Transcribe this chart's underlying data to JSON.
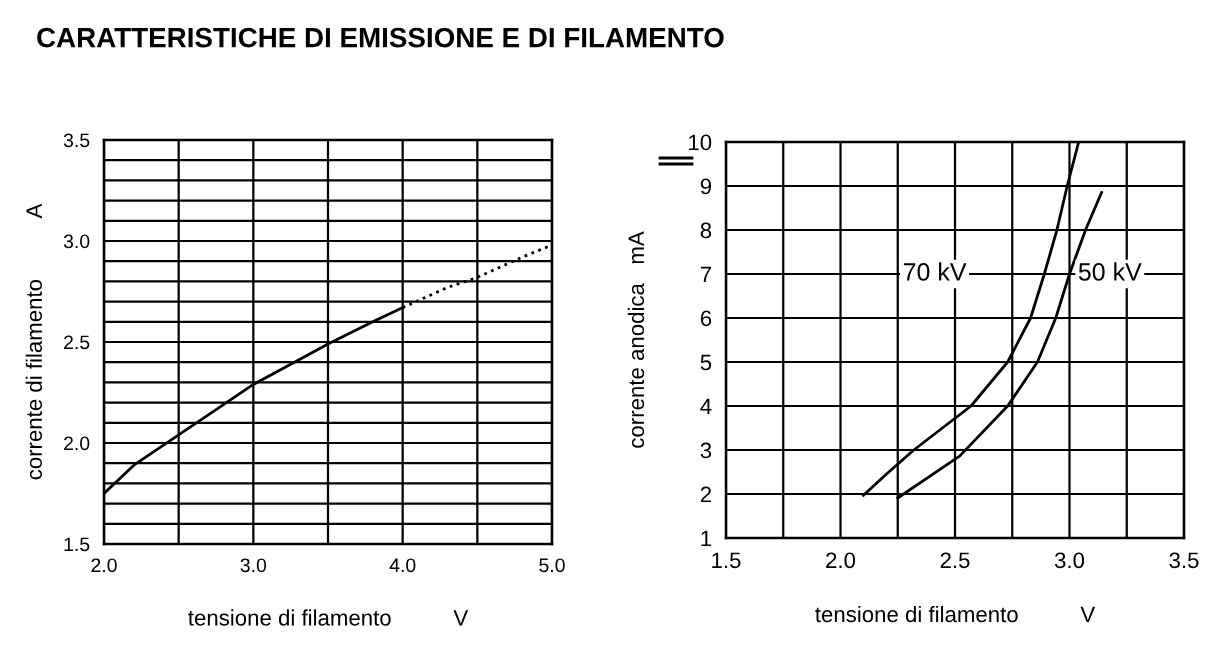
{
  "chart_data": [
    {
      "type": "line",
      "title": "CARATTERISTICHE DI EMISSIONE E DI FILAMENTO",
      "xlabel": "tensione di filamento          V",
      "ylabel": "corrente di filamento          A",
      "series": [
        {
          "color": "#000000",
          "line_style": "solid",
          "x": [
            2.0,
            2.2,
            2.5,
            2.8,
            3.0,
            3.3,
            3.5,
            3.8,
            4.0
          ],
          "values": [
            1.75,
            1.89,
            2.04,
            2.19,
            2.29,
            2.41,
            2.49,
            2.6,
            2.67
          ]
        },
        {
          "color": "#000000",
          "line_style": "dotted",
          "x": [
            4.0,
            4.3,
            4.5,
            4.8,
            5.0
          ],
          "values": [
            2.67,
            2.77,
            2.82,
            2.92,
            2.98
          ]
        }
      ],
      "xlim": [
        2.0,
        5.0
      ],
      "ylim": [
        1.5,
        3.5
      ],
      "xticks": [
        {
          "value": 2.0,
          "label": "2.0"
        },
        {
          "value": 2.5,
          "label": null
        },
        {
          "value": 3.0,
          "label": "3.0"
        },
        {
          "value": 3.5,
          "label": null
        },
        {
          "value": 4.0,
          "label": "4.0"
        },
        {
          "value": 4.5,
          "label": null
        },
        {
          "value": 5.0,
          "label": "5.0"
        }
      ],
      "yticks": [
        {
          "value": 1.5,
          "label": "1.5"
        },
        {
          "value": 1.6,
          "label": null
        },
        {
          "value": 1.7,
          "label": null
        },
        {
          "value": 1.8,
          "label": null
        },
        {
          "value": 1.9,
          "label": null
        },
        {
          "value": 2.0,
          "label": "2.0"
        },
        {
          "value": 2.1,
          "label": null
        },
        {
          "value": 2.2,
          "label": null
        },
        {
          "value": 2.3,
          "label": null
        },
        {
          "value": 2.4,
          "label": null
        },
        {
          "value": 2.5,
          "label": "2.5"
        },
        {
          "value": 2.6,
          "label": null
        },
        {
          "value": 2.7,
          "label": null
        },
        {
          "value": 2.8,
          "label": null
        },
        {
          "value": 2.9,
          "label": null
        },
        {
          "value": 3.0,
          "label": "3.0"
        },
        {
          "value": 3.1,
          "label": null
        },
        {
          "value": 3.2,
          "label": null
        },
        {
          "value": 3.3,
          "label": null
        },
        {
          "value": 3.4,
          "label": null
        },
        {
          "value": 3.5,
          "label": "3.5"
        }
      ],
      "grid": true,
      "legend": false
    },
    {
      "type": "line",
      "xlabel": "tensione di filamento          V",
      "ylabel": "corrente anodica   mA",
      "series": [
        {
          "name": "70 kV",
          "color": "#000000",
          "x": [
            2.1,
            2.2,
            2.32,
            2.57,
            2.73,
            2.83,
            2.89,
            2.945,
            2.99,
            3.04
          ],
          "values": [
            1.97,
            2.45,
            3.0,
            4.0,
            5.0,
            6.0,
            7.0,
            8.0,
            9.0,
            10.0
          ]
        },
        {
          "name": "50 kV",
          "color": "#000000",
          "x": [
            2.25,
            2.52,
            2.73,
            2.86,
            2.94,
            3.0,
            3.07,
            3.14
          ],
          "values": [
            1.91,
            2.86,
            4.0,
            5.0,
            6.0,
            7.0,
            8.0,
            8.85
          ]
        }
      ],
      "xlim": [
        1.5,
        3.5
      ],
      "ylim": [
        1,
        10
      ],
      "xticks": [
        {
          "value": 1.5,
          "label": "1.5"
        },
        {
          "value": 1.75,
          "label": null
        },
        {
          "value": 2.0,
          "label": "2.0"
        },
        {
          "value": 2.25,
          "label": null
        },
        {
          "value": 2.5,
          "label": "2.5"
        },
        {
          "value": 2.75,
          "label": null
        },
        {
          "value": 3.0,
          "label": "3.0"
        },
        {
          "value": 3.25,
          "label": null
        },
        {
          "value": 3.5,
          "label": "3.5"
        }
      ],
      "yticks": [
        1,
        2,
        3,
        4,
        5,
        6,
        7,
        8,
        9,
        10
      ],
      "grid": true,
      "legend": false
    }
  ]
}
